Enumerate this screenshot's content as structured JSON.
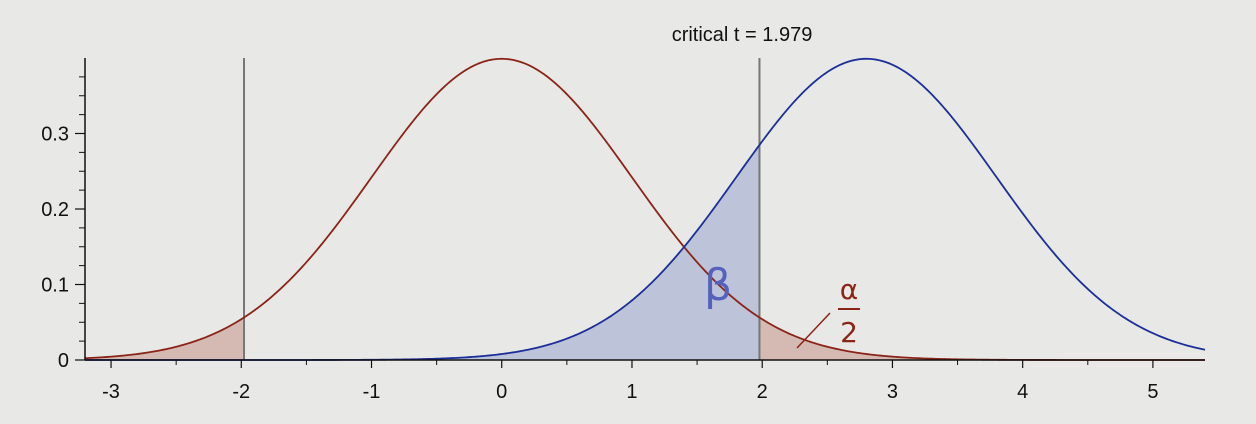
{
  "chart_data": {
    "type": "line",
    "title": "critical t = 1.979",
    "xlabel": "",
    "ylabel": "",
    "xlim": [
      -3.2,
      5.4
    ],
    "ylim": [
      0,
      0.4
    ],
    "x_ticks": [
      -3,
      -2,
      -1,
      0,
      1,
      2,
      3,
      4,
      5
    ],
    "y_ticks": [
      0,
      0.1,
      0.2,
      0.3
    ],
    "y_tick_labels": [
      "0",
      "0.1",
      "0.2",
      "0.3"
    ],
    "critical_values": [
      -1.979,
      1.979
    ],
    "series": [
      {
        "center": 0,
        "color": "#8b2418",
        "fill": "#d3b4ad"
      },
      {
        "center": 2.8,
        "color": "#1c2f99",
        "fill": "#b8bfd6"
      }
    ],
    "shaded_regions": [
      {
        "series": 0,
        "from": -3.2,
        "to": -1.979
      },
      {
        "series": 0,
        "from": 1.979,
        "to": 5.4
      },
      {
        "series": 1,
        "from": -3.2,
        "to": 1.979
      }
    ],
    "annotations": {
      "beta": "β",
      "alpha_numerator": "α",
      "alpha_denominator": "2"
    },
    "grid": false,
    "legend": "none"
  }
}
